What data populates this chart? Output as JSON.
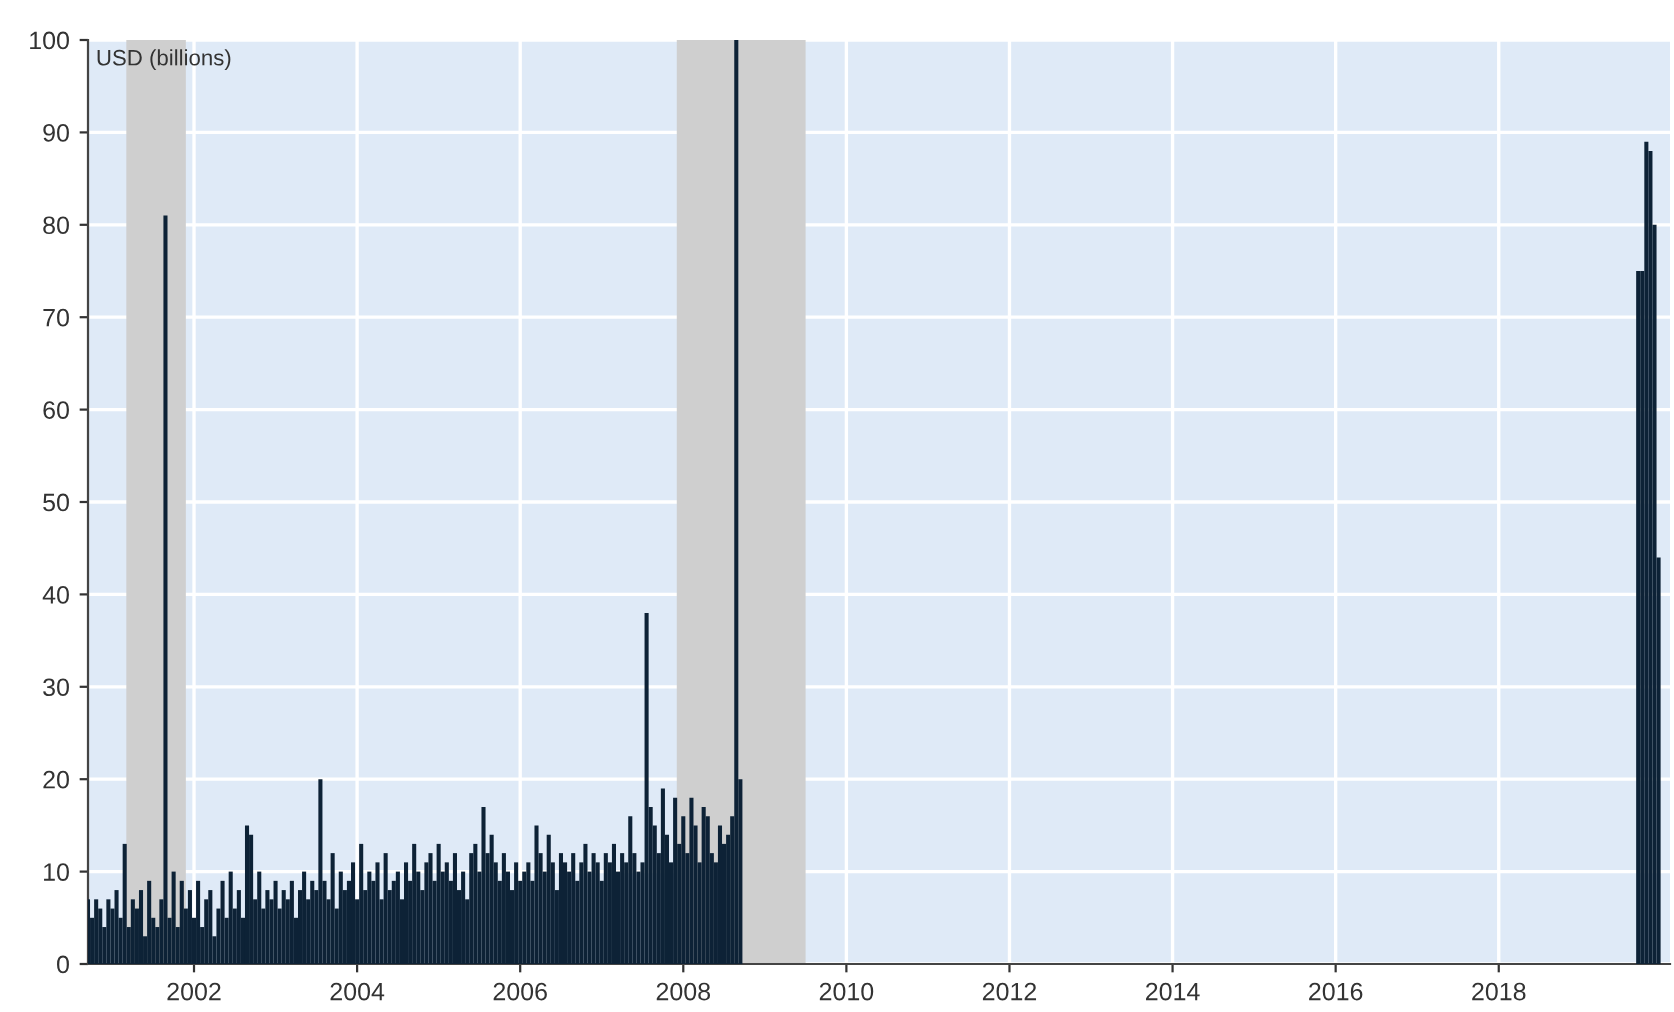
{
  "chart_data": {
    "type": "bar",
    "annotations": [
      "USD (billions)"
    ],
    "x": [
      2000.7,
      2000.75,
      2000.8,
      2000.85,
      2000.9,
      2000.95,
      2001.0,
      2001.05,
      2001.1,
      2001.15,
      2001.2,
      2001.25,
      2001.3,
      2001.35,
      2001.4,
      2001.45,
      2001.5,
      2001.55,
      2001.6,
      2001.65,
      2001.7,
      2001.75,
      2001.8,
      2001.85,
      2001.9,
      2001.95,
      2002.0,
      2002.05,
      2002.1,
      2002.15,
      2002.2,
      2002.25,
      2002.3,
      2002.35,
      2002.4,
      2002.45,
      2002.5,
      2002.55,
      2002.6,
      2002.65,
      2002.7,
      2002.75,
      2002.8,
      2002.85,
      2002.9,
      2002.95,
      2003.0,
      2003.05,
      2003.1,
      2003.15,
      2003.2,
      2003.25,
      2003.3,
      2003.35,
      2003.4,
      2003.45,
      2003.5,
      2003.55,
      2003.6,
      2003.65,
      2003.7,
      2003.75,
      2003.8,
      2003.85,
      2003.9,
      2003.95,
      2004.0,
      2004.05,
      2004.1,
      2004.15,
      2004.2,
      2004.25,
      2004.3,
      2004.35,
      2004.4,
      2004.45,
      2004.5,
      2004.55,
      2004.6,
      2004.65,
      2004.7,
      2004.75,
      2004.8,
      2004.85,
      2004.9,
      2004.95,
      2005.0,
      2005.05,
      2005.1,
      2005.15,
      2005.2,
      2005.25,
      2005.3,
      2005.35,
      2005.4,
      2005.45,
      2005.5,
      2005.55,
      2005.6,
      2005.65,
      2005.7,
      2005.75,
      2005.8,
      2005.85,
      2005.9,
      2005.95,
      2006.0,
      2006.05,
      2006.1,
      2006.15,
      2006.2,
      2006.25,
      2006.3,
      2006.35,
      2006.4,
      2006.45,
      2006.5,
      2006.55,
      2006.6,
      2006.65,
      2006.7,
      2006.75,
      2006.8,
      2006.85,
      2006.9,
      2006.95,
      2007.0,
      2007.05,
      2007.1,
      2007.15,
      2007.2,
      2007.25,
      2007.3,
      2007.35,
      2007.4,
      2007.45,
      2007.5,
      2007.55,
      2007.6,
      2007.65,
      2007.7,
      2007.75,
      2007.8,
      2007.85,
      2007.9,
      2007.95,
      2008.0,
      2008.05,
      2008.1,
      2008.15,
      2008.2,
      2008.25,
      2008.3,
      2008.35,
      2008.4,
      2008.45,
      2008.5,
      2008.55,
      2008.6,
      2008.65,
      2008.7,
      2019.71,
      2019.76,
      2019.81,
      2019.86,
      2019.91,
      2019.96
    ],
    "values": [
      7,
      5,
      7,
      6,
      4,
      7,
      6,
      8,
      5,
      13,
      4,
      7,
      6,
      8,
      3,
      9,
      5,
      4,
      7,
      81,
      5,
      10,
      4,
      9,
      6,
      8,
      5,
      9,
      4,
      7,
      8,
      3,
      6,
      9,
      5,
      10,
      6,
      8,
      5,
      15,
      14,
      7,
      10,
      6,
      8,
      7,
      9,
      6,
      8,
      7,
      9,
      5,
      8,
      10,
      7,
      9,
      8,
      20,
      9,
      7,
      12,
      6,
      10,
      8,
      9,
      11,
      7,
      13,
      8,
      10,
      9,
      11,
      7,
      12,
      8,
      9,
      10,
      7,
      11,
      9,
      13,
      10,
      8,
      11,
      12,
      9,
      13,
      10,
      11,
      9,
      12,
      8,
      10,
      7,
      12,
      13,
      10,
      17,
      12,
      14,
      11,
      9,
      12,
      10,
      8,
      11,
      9,
      10,
      11,
      9,
      15,
      12,
      10,
      14,
      11,
      8,
      12,
      11,
      10,
      12,
      9,
      11,
      13,
      10,
      12,
      11,
      9,
      12,
      11,
      13,
      10,
      12,
      11,
      16,
      12,
      10,
      11,
      38,
      17,
      15,
      12,
      19,
      14,
      11,
      18,
      13,
      16,
      12,
      18,
      15,
      11,
      17,
      16,
      12,
      11,
      15,
      13,
      14,
      16,
      100,
      20,
      75,
      75,
      89,
      88,
      80,
      44
    ],
    "color": "#0d2236",
    "xlim": [
      2000.7,
      2020.1
    ],
    "xticks": [
      2002,
      2004,
      2006,
      2008,
      2010,
      2012,
      2014,
      2016,
      2018
    ],
    "ylim": [
      0,
      100
    ],
    "yticks": [
      0,
      10,
      20,
      30,
      40,
      50,
      60,
      70,
      80,
      90,
      100
    ],
    "bands": [
      {
        "axis": "x",
        "from": 2001.17,
        "to": 2001.9,
        "color": "#cfcfcf"
      },
      {
        "axis": "x",
        "from": 2007.92,
        "to": 2009.5,
        "color": "#cfcfcf"
      }
    ],
    "grid": true
  }
}
